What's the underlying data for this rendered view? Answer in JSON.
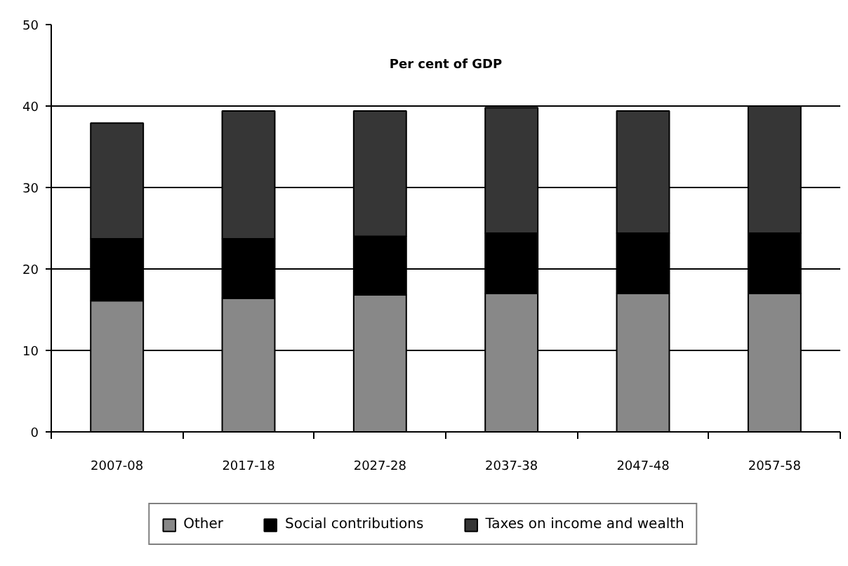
{
  "chart_data": {
    "type": "bar",
    "stacked": true,
    "title": "Per cent of GDP",
    "categories": [
      "2007-08",
      "2017-18",
      "2027-28",
      "2037-38",
      "2047-48",
      "2057-58"
    ],
    "series": [
      {
        "name": "Other",
        "color": "#888888",
        "values": [
          16.1,
          16.4,
          16.8,
          17.0,
          17.0,
          17.0
        ]
      },
      {
        "name": "Social contributions",
        "color": "#000000",
        "values": [
          7.6,
          7.3,
          7.2,
          7.4,
          7.4,
          7.4
        ]
      },
      {
        "name": "Taxes on income and wealth",
        "color": "#363636",
        "values": [
          14.2,
          15.7,
          15.4,
          15.4,
          15.0,
          15.6
        ]
      }
    ],
    "ylim": [
      0,
      50
    ],
    "yticks": [
      0,
      10,
      20,
      30,
      40,
      50
    ],
    "grid": "y",
    "legend": "bottom"
  }
}
